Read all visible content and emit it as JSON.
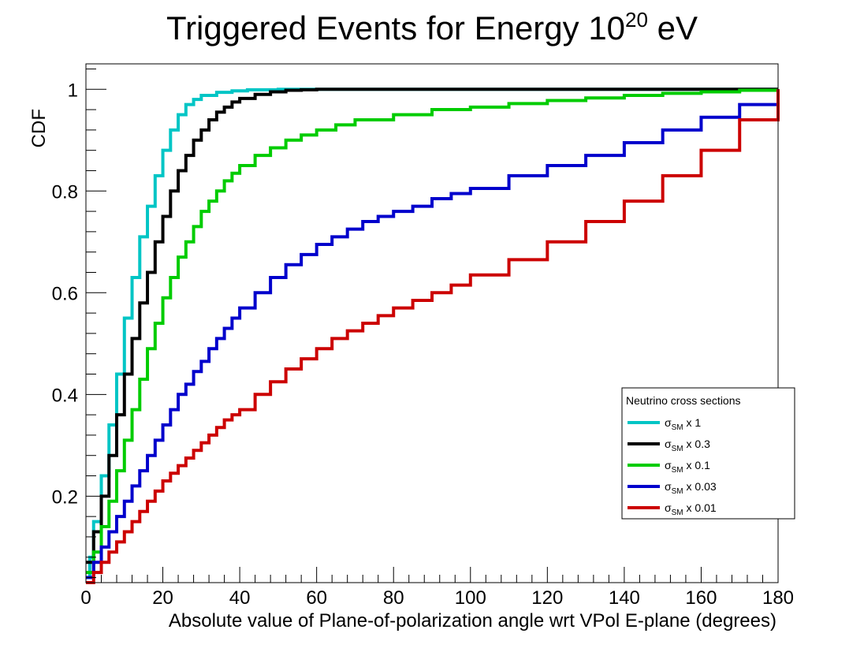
{
  "chart_data": {
    "type": "line",
    "step": true,
    "title_main": "Triggered Events for Energy 10",
    "title_sup": "20",
    "title_end": " eV",
    "xlabel": "Absolute value of Plane-of-polarization angle wrt VPol E-plane (degrees)",
    "ylabel": "CDF",
    "xlim": [
      0,
      180
    ],
    "ylim": [
      0.03,
      1.05
    ],
    "x_ticks": [
      "0",
      "20",
      "40",
      "60",
      "80",
      "100",
      "120",
      "140",
      "160",
      "180"
    ],
    "y_ticks": [
      "0.2",
      "0.4",
      "0.6",
      "0.8",
      "1"
    ],
    "grid": false,
    "legend_position": "lower-right",
    "legend_header": "Neutrino cross sections",
    "series": [
      {
        "name": "σSM x 1",
        "label_symbol": "σ",
        "label_sub": "SM",
        "label_rest": " x 1",
        "color": "#00c5c5",
        "x": [
          0,
          1,
          2,
          4,
          6,
          8,
          10,
          12,
          14,
          16,
          18,
          20,
          22,
          24,
          26,
          28,
          30,
          34,
          38,
          42,
          50,
          60,
          70,
          180
        ],
        "y": [
          0.04,
          0.08,
          0.15,
          0.24,
          0.34,
          0.44,
          0.55,
          0.63,
          0.71,
          0.77,
          0.83,
          0.88,
          0.92,
          0.95,
          0.97,
          0.98,
          0.988,
          0.994,
          0.997,
          0.999,
          1.0,
          1.0,
          1.0,
          1.0
        ]
      },
      {
        "name": "σSM x 0.3",
        "label_symbol": "σ",
        "label_sub": "SM",
        "label_rest": " x 0.3",
        "color": "#000000",
        "x": [
          0,
          2,
          4,
          6,
          8,
          10,
          12,
          14,
          16,
          18,
          20,
          22,
          24,
          26,
          28,
          30,
          32,
          34,
          36,
          38,
          40,
          44,
          48,
          52,
          56,
          60,
          70,
          180
        ],
        "y": [
          0.07,
          0.13,
          0.2,
          0.28,
          0.36,
          0.44,
          0.51,
          0.58,
          0.64,
          0.7,
          0.75,
          0.8,
          0.84,
          0.87,
          0.9,
          0.92,
          0.94,
          0.955,
          0.965,
          0.975,
          0.982,
          0.99,
          0.995,
          0.998,
          0.999,
          1.0,
          1.0,
          1.0
        ]
      },
      {
        "name": "σSM x 0.1",
        "label_symbol": "σ",
        "label_sub": "SM",
        "label_rest": " x 0.1",
        "color": "#00cc00",
        "x": [
          0,
          2,
          4,
          6,
          8,
          10,
          12,
          14,
          16,
          18,
          20,
          22,
          24,
          26,
          28,
          30,
          32,
          34,
          36,
          38,
          40,
          44,
          48,
          52,
          56,
          60,
          65,
          70,
          80,
          90,
          100,
          110,
          120,
          130,
          140,
          150,
          160,
          170,
          180
        ],
        "y": [
          0.05,
          0.09,
          0.14,
          0.19,
          0.25,
          0.31,
          0.37,
          0.43,
          0.49,
          0.54,
          0.59,
          0.63,
          0.67,
          0.7,
          0.73,
          0.76,
          0.78,
          0.8,
          0.82,
          0.835,
          0.85,
          0.87,
          0.885,
          0.9,
          0.91,
          0.92,
          0.93,
          0.94,
          0.95,
          0.96,
          0.965,
          0.972,
          0.978,
          0.983,
          0.988,
          0.992,
          0.995,
          0.998,
          1.0
        ]
      },
      {
        "name": "σSM x 0.03",
        "label_symbol": "σ",
        "label_sub": "SM",
        "label_rest": " x 0.03",
        "color": "#0000cc",
        "x": [
          0,
          2,
          4,
          6,
          8,
          10,
          12,
          14,
          16,
          18,
          20,
          22,
          24,
          26,
          28,
          30,
          32,
          34,
          36,
          38,
          40,
          44,
          48,
          52,
          56,
          60,
          64,
          68,
          72,
          76,
          80,
          85,
          90,
          95,
          100,
          110,
          120,
          130,
          140,
          150,
          160,
          170,
          180
        ],
        "y": [
          0.04,
          0.07,
          0.1,
          0.13,
          0.16,
          0.19,
          0.22,
          0.25,
          0.28,
          0.31,
          0.34,
          0.37,
          0.4,
          0.42,
          0.445,
          0.465,
          0.49,
          0.51,
          0.53,
          0.55,
          0.57,
          0.6,
          0.63,
          0.655,
          0.675,
          0.695,
          0.71,
          0.725,
          0.74,
          0.75,
          0.76,
          0.77,
          0.785,
          0.795,
          0.805,
          0.83,
          0.85,
          0.87,
          0.895,
          0.92,
          0.945,
          0.97,
          1.0
        ]
      },
      {
        "name": "σSM x 0.01",
        "label_symbol": "σ",
        "label_sub": "SM",
        "label_rest": " x 0.01",
        "color": "#cc0000",
        "x": [
          0,
          2,
          4,
          6,
          8,
          10,
          12,
          14,
          16,
          18,
          20,
          22,
          24,
          26,
          28,
          30,
          32,
          34,
          36,
          38,
          40,
          44,
          48,
          52,
          56,
          60,
          64,
          68,
          72,
          76,
          80,
          85,
          90,
          95,
          100,
          110,
          120,
          130,
          140,
          150,
          160,
          170,
          180
        ],
        "y": [
          0.03,
          0.05,
          0.07,
          0.09,
          0.11,
          0.13,
          0.15,
          0.17,
          0.19,
          0.21,
          0.23,
          0.245,
          0.26,
          0.275,
          0.29,
          0.305,
          0.32,
          0.335,
          0.35,
          0.36,
          0.37,
          0.4,
          0.425,
          0.45,
          0.47,
          0.49,
          0.51,
          0.525,
          0.54,
          0.555,
          0.57,
          0.585,
          0.6,
          0.615,
          0.635,
          0.665,
          0.7,
          0.74,
          0.78,
          0.83,
          0.88,
          0.94,
          1.0
        ]
      }
    ]
  }
}
